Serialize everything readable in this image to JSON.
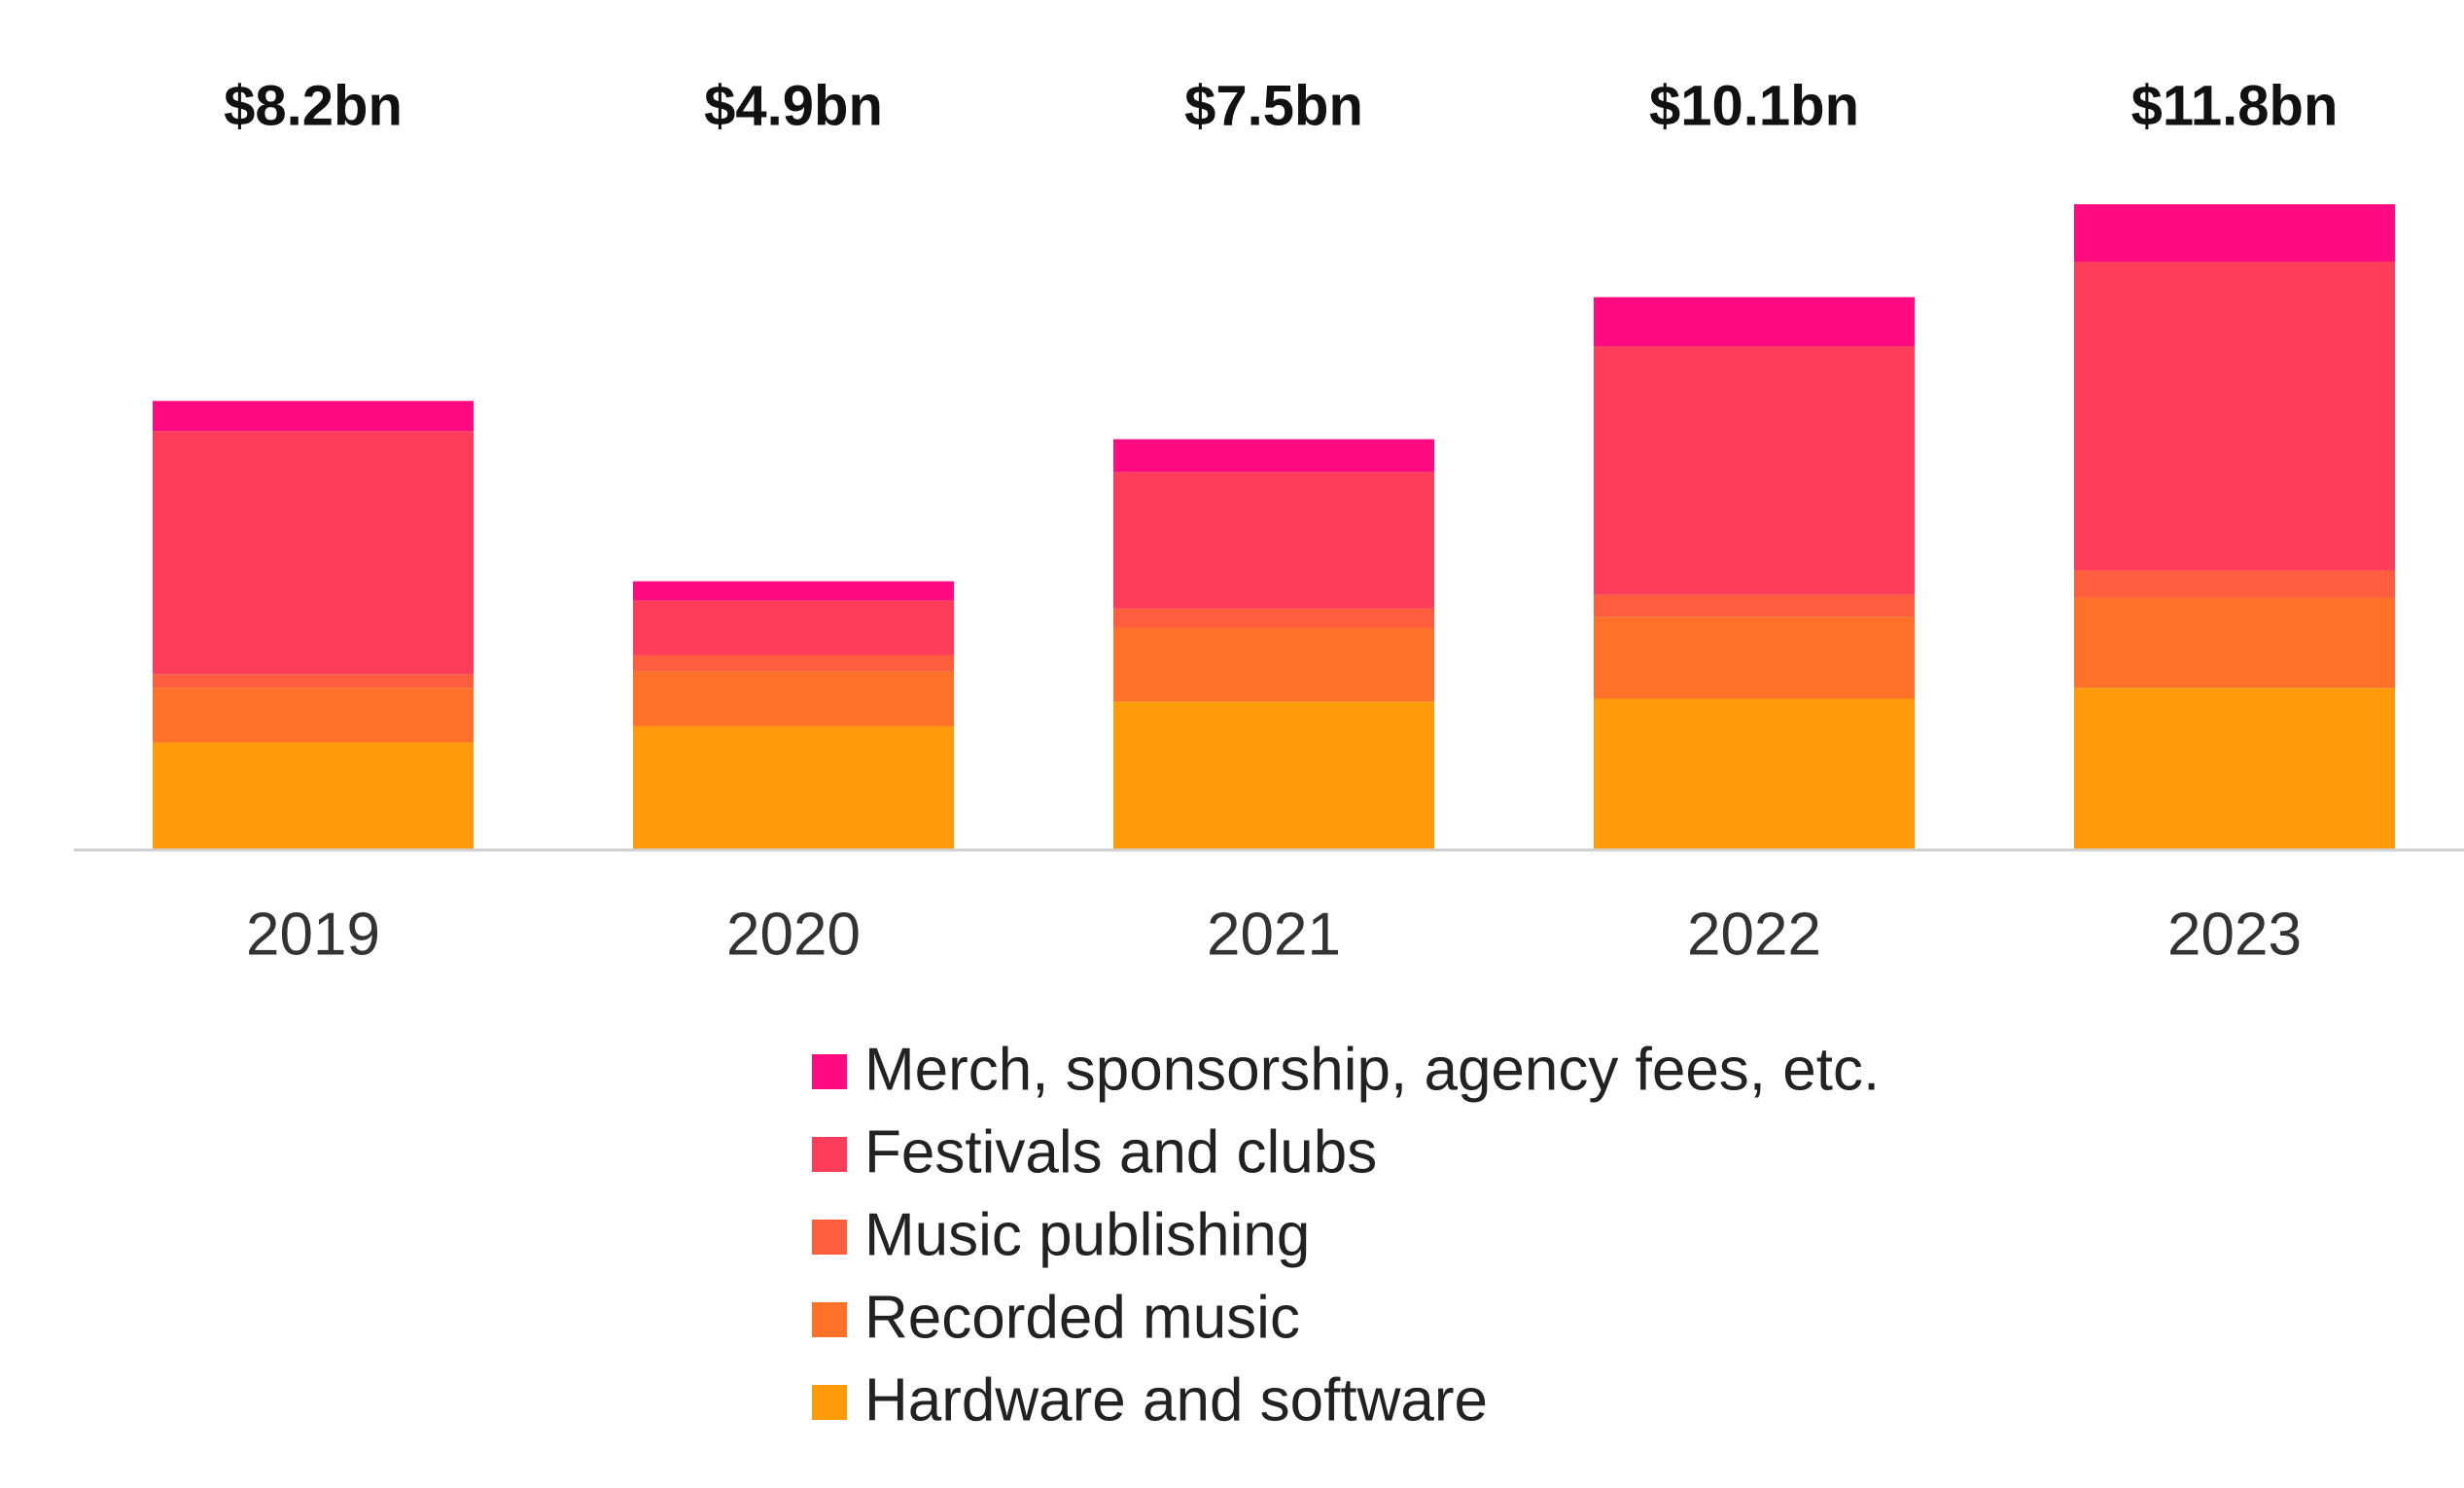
{
  "chart_data": {
    "type": "stacked-bar",
    "categories": [
      "2019",
      "2020",
      "2021",
      "2022",
      "2023"
    ],
    "series": [
      {
        "name": "Hardware and software",
        "color": "#ff9a0a",
        "values": [
          1.95,
          2.25,
          2.7,
          2.75,
          2.95
        ]
      },
      {
        "name": "Recorded music",
        "color": "#ff7028",
        "values": [
          1.0,
          1.0,
          1.35,
          1.5,
          1.65
        ]
      },
      {
        "name": "Music publishing",
        "color": "#ff5e3e",
        "values": [
          0.25,
          0.3,
          0.35,
          0.4,
          0.5
        ]
      },
      {
        "name": "Festivals and clubs",
        "color": "#ff3c5a",
        "values": [
          4.45,
          1.0,
          2.5,
          4.55,
          5.65
        ]
      },
      {
        "name": "Merch, sponsorship, agency fees, etc.",
        "color": "#ff0a80",
        "values": [
          0.55,
          0.35,
          0.6,
          0.9,
          1.05
        ]
      }
    ],
    "totals": {
      "values": [
        8.2,
        4.9,
        7.5,
        10.1,
        11.8
      ],
      "value_labels": [
        "$8.2bn",
        "$4.9bn",
        "$7.5bn",
        "$10.1bn",
        "$11.8bn"
      ]
    }
  }
}
